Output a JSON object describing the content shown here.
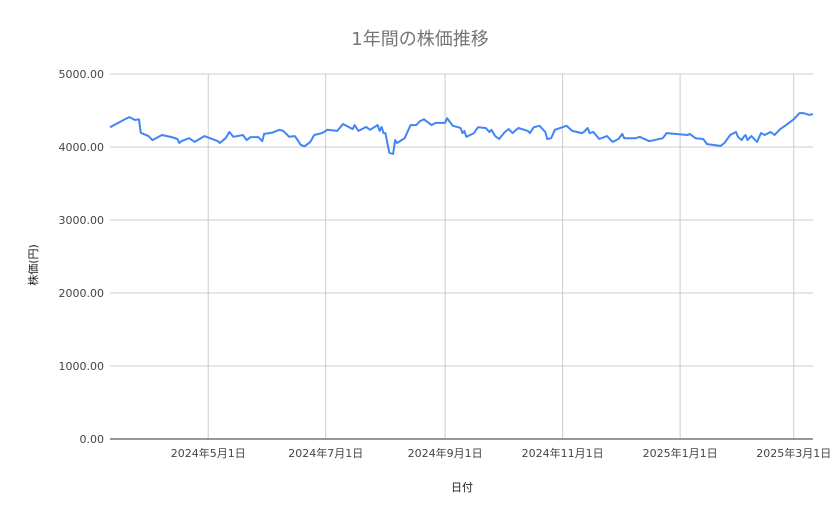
{
  "chart_data": {
    "type": "line",
    "title": "1年間の株価推移",
    "xlabel": "日付",
    "ylabel": "株価(円)",
    "ylim": [
      0,
      5000
    ],
    "xlim": [
      "2024-03-11",
      "2025-03-11"
    ],
    "grid": true,
    "legend": "none",
    "line_color": "#4285f4",
    "y_ticks": [
      "0.00",
      "1000.00",
      "2000.00",
      "3000.00",
      "4000.00",
      "5000.00"
    ],
    "y_tick_values": [
      0,
      1000,
      2000,
      3000,
      4000,
      5000
    ],
    "x_ticks": [
      {
        "date": "2024-05-01",
        "label": "2024年5月1日"
      },
      {
        "date": "2024-07-01",
        "label": "2024年7月1日"
      },
      {
        "date": "2024-09-01",
        "label": "2024年9月1日"
      },
      {
        "date": "2024-11-01",
        "label": "2024年11月1日"
      },
      {
        "date": "2025-01-01",
        "label": "2025年1月1日"
      },
      {
        "date": "2025-03-01",
        "label": "2025年3月1日"
      }
    ],
    "series": [
      {
        "x": [
          "2024-03-11",
          "2024-03-18",
          "2024-03-21",
          "2024-03-24",
          "2024-03-26",
          "2024-03-27",
          "2024-03-31",
          "2024-04-02",
          "2024-04-07",
          "2024-04-12",
          "2024-04-15",
          "2024-04-16",
          "2024-04-17",
          "2024-04-21",
          "2024-04-24",
          "2024-04-29",
          "2024-05-06",
          "2024-05-07",
          "2024-05-10",
          "2024-05-12",
          "2024-05-14",
          "2024-05-19",
          "2024-05-21",
          "2024-05-23",
          "2024-05-27",
          "2024-05-29",
          "2024-05-30",
          "2024-06-03",
          "2024-06-07",
          "2024-06-09",
          "2024-06-12",
          "2024-06-15",
          "2024-06-18",
          "2024-06-20",
          "2024-06-23",
          "2024-06-25",
          "2024-06-29",
          "2024-07-02",
          "2024-07-07",
          "2024-07-10",
          "2024-07-15",
          "2024-07-16",
          "2024-07-18",
          "2024-07-22",
          "2024-07-24",
          "2024-07-28",
          "2024-07-29",
          "2024-07-30",
          "2024-07-31",
          "2024-08-01",
          "2024-08-03",
          "2024-08-05",
          "2024-08-06",
          "2024-08-07",
          "2024-08-11",
          "2024-08-14",
          "2024-08-17",
          "2024-08-19",
          "2024-08-21",
          "2024-08-25",
          "2024-08-27",
          "2024-09-01",
          "2024-09-02",
          "2024-09-05",
          "2024-09-08",
          "2024-09-09",
          "2024-09-10",
          "2024-09-11",
          "2024-09-12",
          "2024-09-16",
          "2024-09-18",
          "2024-09-22",
          "2024-09-24",
          "2024-09-25",
          "2024-09-27",
          "2024-09-29",
          "2024-10-02",
          "2024-10-04",
          "2024-10-06",
          "2024-10-09",
          "2024-10-14",
          "2024-10-15",
          "2024-10-17",
          "2024-10-20",
          "2024-10-23",
          "2024-10-24",
          "2024-10-26",
          "2024-10-28",
          "2024-11-03",
          "2024-11-06",
          "2024-11-11",
          "2024-11-12",
          "2024-11-14",
          "2024-11-15",
          "2024-11-17",
          "2024-11-20",
          "2024-11-24",
          "2024-11-26",
          "2024-11-27",
          "2024-11-30",
          "2024-12-02",
          "2024-12-03",
          "2024-12-09",
          "2024-12-11",
          "2024-12-16",
          "2024-12-23",
          "2024-12-25",
          "2025-01-05",
          "2025-01-06",
          "2025-01-09",
          "2025-01-13",
          "2025-01-15",
          "2025-01-22",
          "2025-01-24",
          "2025-01-27",
          "2025-01-30",
          "2025-01-31",
          "2025-02-02",
          "2025-02-03",
          "2025-02-04",
          "2025-02-05",
          "2025-02-07",
          "2025-02-10",
          "2025-02-12",
          "2025-02-14",
          "2025-02-17",
          "2025-02-19",
          "2025-02-22",
          "2025-02-25",
          "2025-03-01",
          "2025-03-04",
          "2025-03-06",
          "2025-03-09",
          "2025-03-11"
        ],
        "y": [
          4270,
          4370,
          4410,
          4370,
          4380,
          4195,
          4150,
          4095,
          4165,
          4135,
          4110,
          4055,
          4080,
          4120,
          4070,
          4150,
          4080,
          4055,
          4120,
          4205,
          4140,
          4165,
          4095,
          4135,
          4135,
          4080,
          4180,
          4195,
          4235,
          4220,
          4140,
          4150,
          4030,
          4010,
          4070,
          4165,
          4190,
          4235,
          4220,
          4315,
          4245,
          4300,
          4220,
          4275,
          4235,
          4300,
          4220,
          4275,
          4190,
          4190,
          3920,
          3905,
          4095,
          4055,
          4120,
          4300,
          4300,
          4355,
          4380,
          4300,
          4330,
          4330,
          4395,
          4290,
          4270,
          4260,
          4190,
          4220,
          4140,
          4190,
          4270,
          4260,
          4205,
          4235,
          4150,
          4110,
          4205,
          4245,
          4190,
          4260,
          4220,
          4190,
          4270,
          4290,
          4205,
          4110,
          4120,
          4235,
          4290,
          4220,
          4190,
          4205,
          4260,
          4190,
          4205,
          4110,
          4150,
          4095,
          4070,
          4110,
          4180,
          4120,
          4120,
          4140,
          4080,
          4120,
          4190,
          4165,
          4180,
          4120,
          4110,
          4040,
          4015,
          4055,
          4165,
          4205,
          4140,
          4095,
          4140,
          4165,
          4095,
          4150,
          4070,
          4190,
          4165,
          4205,
          4165,
          4245,
          4300,
          4380,
          4465,
          4465,
          4440,
          4450
        ]
      }
    ]
  }
}
